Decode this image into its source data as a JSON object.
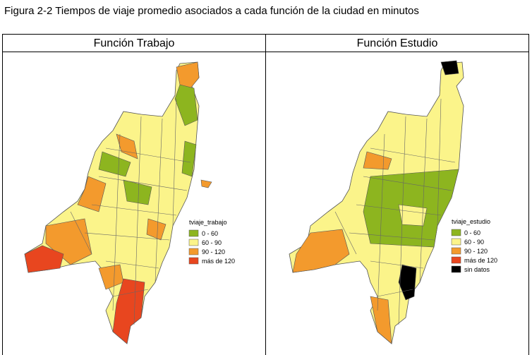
{
  "figure": {
    "caption": "Figura 2-2 Tiempos de viaje promedio asociados a cada función de la ciudad en minutos",
    "panels": [
      {
        "title": "Función Trabajo",
        "legend": {
          "title": "tviaje_trabajo",
          "items": [
            {
              "label": "0 - 60",
              "color": "#8db51f"
            },
            {
              "label": "60 - 90",
              "color": "#fbf48a"
            },
            {
              "label": "90 - 120",
              "color": "#f39a2d"
            },
            {
              "label": "más de 120",
              "color": "#e8461f"
            }
          ]
        }
      },
      {
        "title": "Función Estudio",
        "legend": {
          "title": "tviaje_estudio",
          "items": [
            {
              "label": "0 - 60",
              "color": "#8db51f"
            },
            {
              "label": "60 - 90",
              "color": "#fbf48a"
            },
            {
              "label": "90 - 120",
              "color": "#f39a2d"
            },
            {
              "label": "más de 120",
              "color": "#e8461f"
            },
            {
              "label": "sin datos",
              "color": "#000000"
            }
          ]
        }
      }
    ]
  }
}
